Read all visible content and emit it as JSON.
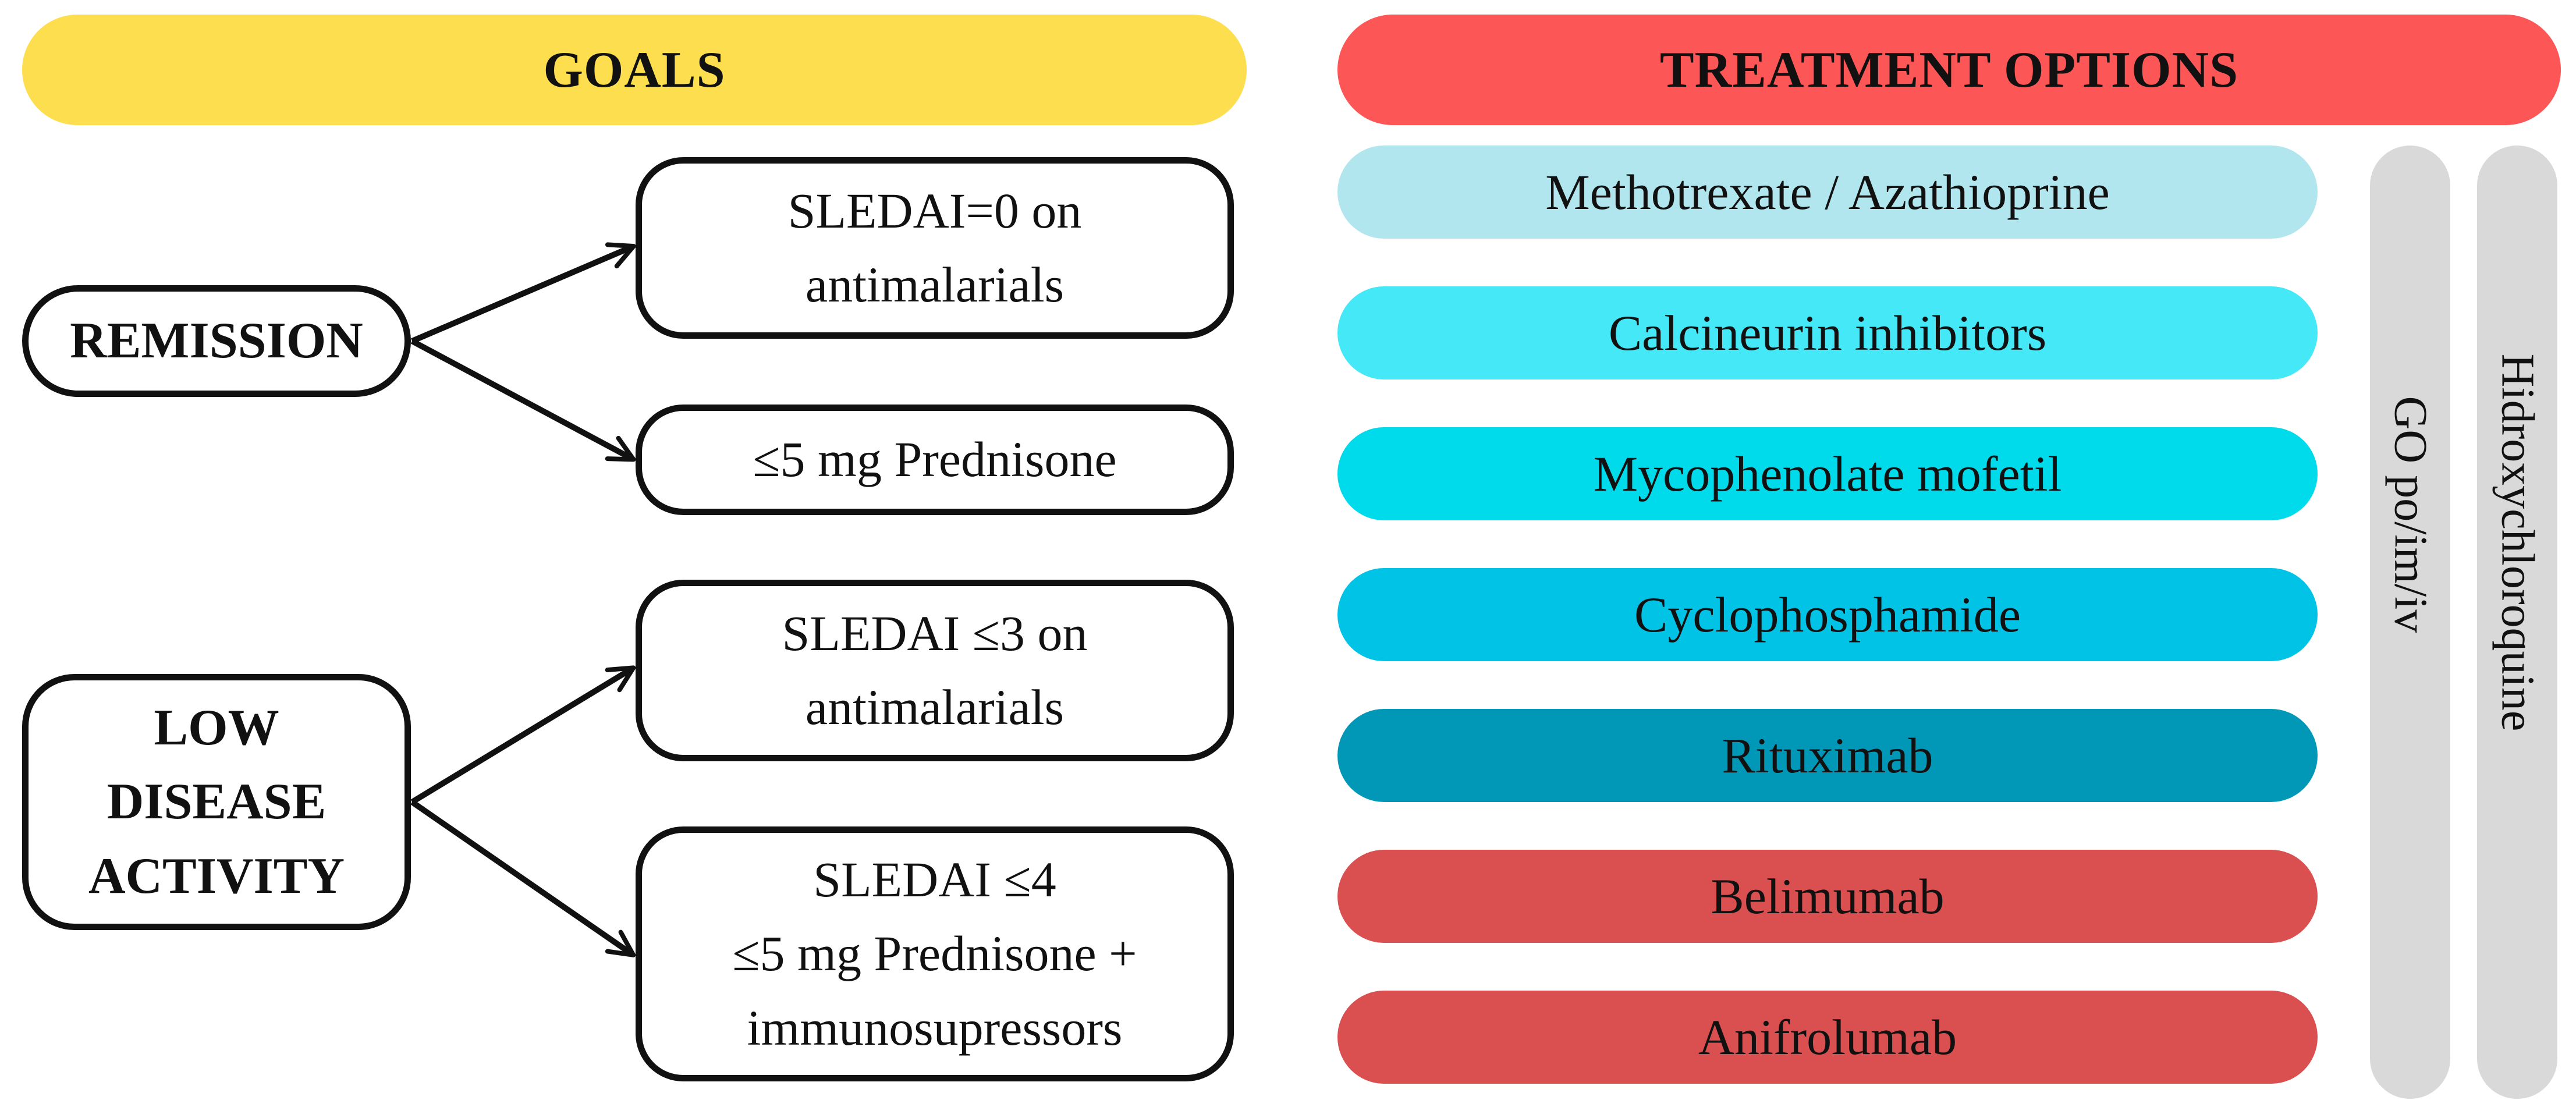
{
  "goals": {
    "header": "GOALS",
    "remission": {
      "label": "REMISSION",
      "targets": [
        {
          "lines": [
            "SLEDAI=0 on",
            "antimalarials"
          ]
        },
        {
          "lines": [
            "≤5 mg Prednisone"
          ]
        }
      ]
    },
    "low_disease_activity": {
      "label_lines": [
        "LOW",
        "DISEASE",
        "ACTIVITY"
      ],
      "targets": [
        {
          "lines": [
            "SLEDAI  ≤3 on",
            "antimalarials"
          ]
        },
        {
          "lines": [
            "SLEDAI  ≤4",
            "≤5 mg Prednisone +",
            "immunosupressors"
          ]
        }
      ]
    }
  },
  "treatment": {
    "header": "TREATMENT OPTIONS",
    "options": [
      {
        "label": "Methotrexate / Azathioprine",
        "color": "#b2e6ee"
      },
      {
        "label": "Calcineurin inhibitors",
        "color": "#44e8f7"
      },
      {
        "label": "Mycophenolate mofetil",
        "color": "#00dbec"
      },
      {
        "label": "Cyclophosphamide",
        "color": "#00c3e5"
      },
      {
        "label": "Rituximab",
        "color": "#0198b8"
      },
      {
        "label": "Belimumab",
        "color": "#da4f4f"
      },
      {
        "label": "Anifrolumab",
        "color": "#da4f4f"
      }
    ],
    "vertical_bars": [
      {
        "label": "GO po/im/iv",
        "color": "#d9d9d9"
      },
      {
        "label": "Hidroxychloroquine",
        "color": "#d9d9d9"
      }
    ]
  },
  "colors": {
    "goals_header": "#fdde4f",
    "treatment_header": "#fc5656",
    "outline": "#111111"
  }
}
